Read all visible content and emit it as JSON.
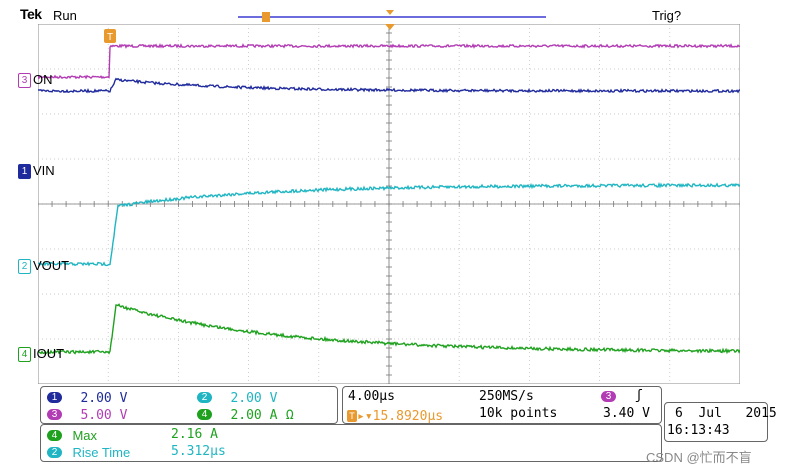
{
  "header": {
    "brand": "Tek",
    "status": "Run",
    "trigger_state": "Trig?"
  },
  "channels": [
    {
      "num": "3",
      "label": "ON",
      "color": "#b23cb4"
    },
    {
      "num": "1",
      "label": "VIN",
      "color": "#1f2a9c"
    },
    {
      "num": "2",
      "label": "VOUT",
      "color": "#1fb5c2"
    },
    {
      "num": "4",
      "label": "IOUT",
      "color": "#1fa11f"
    }
  ],
  "markers": {
    "trigger": "T"
  },
  "scales": {
    "ch1": {
      "num": "1",
      "value": "2.00 V",
      "color": "#1f2a9c"
    },
    "ch2": {
      "num": "2",
      "value": "2.00 V",
      "color": "#1fb5c2"
    },
    "ch3": {
      "num": "3",
      "value": "5.00 V",
      "color": "#b23cb4"
    },
    "ch4": {
      "num": "4",
      "value": "2.00 A",
      "suffix": "Ω",
      "color": "#1fa11f"
    }
  },
  "timebase": {
    "time_per_div": "4.00µs",
    "sample_rate": "250MS/s",
    "trigger_pos_prefix": "T",
    "trigger_pos": "▸▾15.8920µs",
    "record_length": "10k points",
    "trigger_source": "3",
    "trigger_slope": "ʃ",
    "trigger_level": "3.40 V"
  },
  "datetime": {
    "date": "6  Jul   2015",
    "time": "16:13:43"
  },
  "measurements": [
    {
      "channel": "4",
      "name": "Max",
      "value": "2.16 A",
      "color": "#1fa11f"
    },
    {
      "channel": "2",
      "name": "Rise Time",
      "value": "5.312µs",
      "color": "#1fb5c2"
    }
  ],
  "watermark": "CSDN @忙而不盲"
}
